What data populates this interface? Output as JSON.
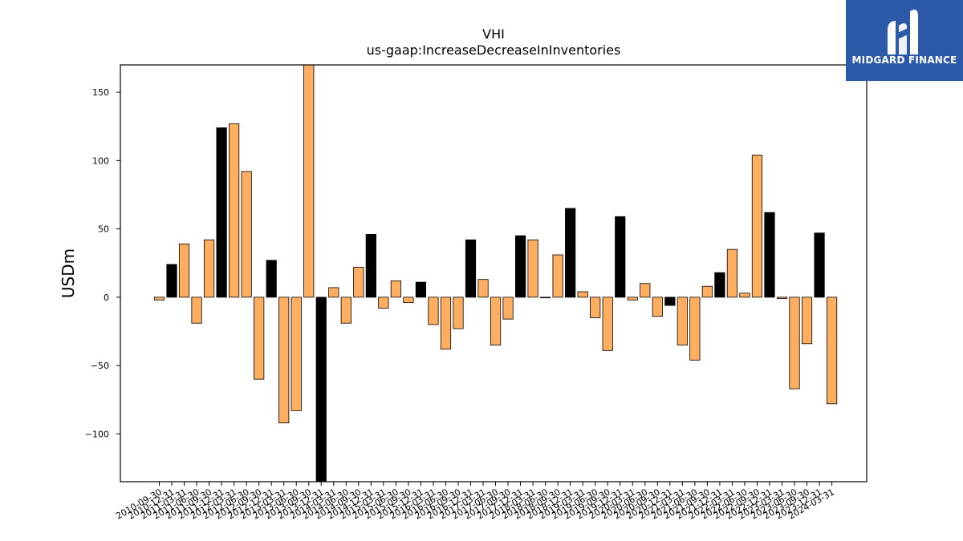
{
  "logo": {
    "text": "MIDGARD FINANCE",
    "icon": "midgard-logo-icon",
    "background": "#2d5aa8"
  },
  "chart_data": {
    "type": "bar",
    "title": "VHI",
    "subtitle": "us-gaap:IncreaseDecreaseInInventories",
    "xlabel": "",
    "ylabel": "USDm",
    "ylim": [
      -135,
      170
    ],
    "yticks": [
      -100,
      -50,
      0,
      50,
      100,
      150
    ],
    "ytick_labels": [
      "−100",
      "−50",
      "0",
      "50",
      "100",
      "150"
    ],
    "grid": false,
    "colors": {
      "quarter": "#fdae61",
      "annual": "#000000",
      "edge": "#000000"
    },
    "categories": [
      "2010-09-30",
      "2010-12-31",
      "2011-03-31",
      "2011-06-30",
      "2011-09-30",
      "2011-12-31",
      "2012-03-31",
      "2012-06-30",
      "2012-09-30",
      "2012-12-31",
      "2013-03-31",
      "2013-06-30",
      "2013-09-30",
      "2013-12-31",
      "2014-03-31",
      "2014-06-30",
      "2014-09-30",
      "2014-12-31",
      "2015-03-31",
      "2015-06-30",
      "2015-09-30",
      "2015-12-31",
      "2016-03-31",
      "2016-06-30",
      "2016-09-30",
      "2016-12-31",
      "2017-03-31",
      "2017-06-30",
      "2017-09-30",
      "2017-12-31",
      "2018-03-31",
      "2018-06-30",
      "2018-09-30",
      "2018-12-31",
      "2019-03-31",
      "2019-06-30",
      "2019-09-30",
      "2019-12-31",
      "2020-03-31",
      "2020-06-30",
      "2020-09-30",
      "2020-12-31",
      "2021-03-31",
      "2021-06-30",
      "2021-09-30",
      "2021-12-31",
      "2022-03-31",
      "2022-06-30",
      "2022-09-30",
      "2022-12-31",
      "2023-03-31",
      "2023-06-30",
      "2023-09-30",
      "2023-12-31",
      "2024-03-31"
    ],
    "values": [
      -2,
      24,
      39,
      -19,
      42,
      124,
      127,
      92,
      -60,
      27,
      -92,
      -83,
      170,
      -135,
      7,
      -19,
      22,
      46,
      -8,
      12,
      -4,
      11,
      -20,
      -38,
      -23,
      42,
      13,
      -35,
      -16,
      45,
      42,
      0,
      31,
      65,
      4,
      -15,
      -39,
      59,
      -2,
      10,
      -14,
      -6,
      -35,
      -46,
      8,
      18,
      35,
      3,
      104,
      62,
      -1,
      -67,
      -34,
      47,
      -78
    ],
    "kinds": [
      "q",
      "a",
      "q",
      "q",
      "q",
      "a",
      "q",
      "q",
      "q",
      "a",
      "q",
      "q",
      "q",
      "a",
      "q",
      "q",
      "q",
      "a",
      "q",
      "q",
      "q",
      "a",
      "q",
      "q",
      "q",
      "a",
      "q",
      "q",
      "q",
      "a",
      "q",
      "q",
      "q",
      "a",
      "q",
      "q",
      "q",
      "a",
      "q",
      "q",
      "q",
      "a",
      "q",
      "q",
      "q",
      "a",
      "q",
      "q",
      "q",
      "a",
      "q",
      "q",
      "q",
      "a",
      "q"
    ]
  }
}
